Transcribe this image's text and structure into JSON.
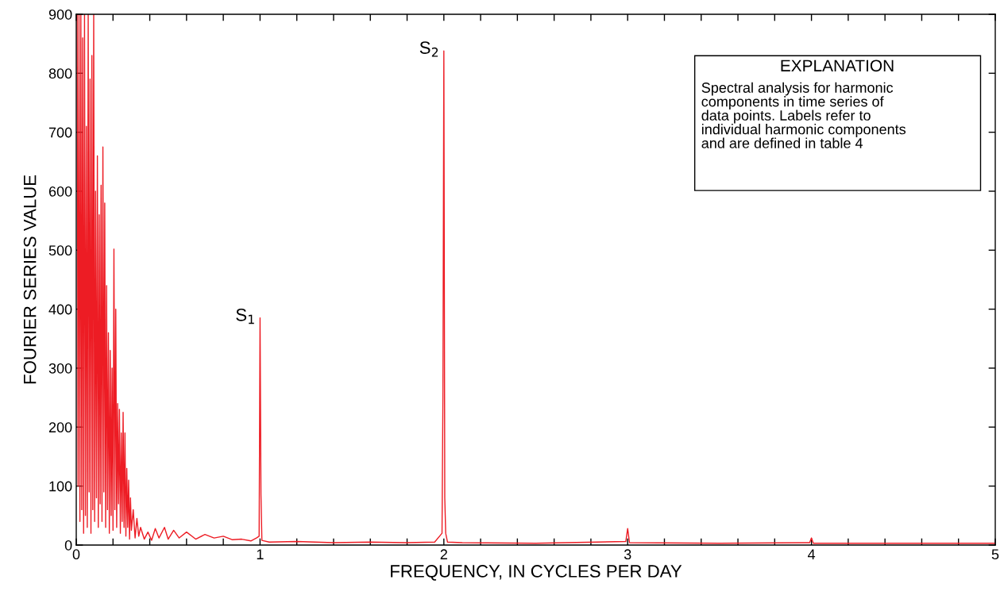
{
  "chart_data": {
    "type": "line",
    "xlabel": "FREQUENCY, IN CYCLES PER DAY",
    "ylabel": "FOURIER SERIES VALUE",
    "xlim": [
      0,
      5
    ],
    "ylim": [
      0,
      900
    ],
    "xticks": [
      0,
      {
        "value": 0.2,
        "label": null
      },
      {
        "value": 0.4,
        "label": null
      },
      {
        "value": 0.6,
        "label": null
      },
      {
        "value": 0.8,
        "label": null
      },
      1,
      {
        "value": 1.2,
        "label": null
      },
      {
        "value": 1.4,
        "label": null
      },
      {
        "value": 1.6,
        "label": null
      },
      {
        "value": 1.8,
        "label": null
      },
      2,
      {
        "value": 2.2,
        "label": null
      },
      {
        "value": 2.4,
        "label": null
      },
      {
        "value": 2.6,
        "label": null
      },
      {
        "value": 2.8,
        "label": null
      },
      3,
      {
        "value": 3.2,
        "label": null
      },
      {
        "value": 3.4,
        "label": null
      },
      {
        "value": 3.6,
        "label": null
      },
      {
        "value": 3.8,
        "label": null
      },
      4,
      {
        "value": 4.2,
        "label": null
      },
      {
        "value": 4.4,
        "label": null
      },
      {
        "value": 4.6,
        "label": null
      },
      {
        "value": 4.8,
        "label": null
      },
      5
    ],
    "yticks": [
      0,
      100,
      200,
      300,
      400,
      500,
      600,
      700,
      800,
      900
    ],
    "grid": false,
    "legend": false,
    "marker": "none",
    "line_style": "solid",
    "annotations": [
      {
        "text": "S$_{1}$",
        "x": 1.0,
        "y": 385
      },
      {
        "text": "S$_{2}$",
        "x": 2.0,
        "y": 838
      },
      "EXPLANATION",
      "Spectral analysis for harmonic\ncomponents in time series of\ndata points. Labels refer to\nindividual harmonic components\nand are defined in table 4"
    ],
    "series": [
      {
        "color": "#ed1c24",
        "x": [
          0.005,
          0.01,
          0.015,
          0.02,
          0.025,
          0.03,
          0.035,
          0.04,
          0.045,
          0.05,
          0.055,
          0.06,
          0.065,
          0.07,
          0.075,
          0.08,
          0.085,
          0.09,
          0.095,
          0.1,
          0.105,
          0.11,
          0.115,
          0.12,
          0.125,
          0.13,
          0.135,
          0.14,
          0.145,
          0.15,
          0.155,
          0.16,
          0.165,
          0.17,
          0.175,
          0.18,
          0.185,
          0.19,
          0.195,
          0.2,
          0.205,
          0.21,
          0.215,
          0.22,
          0.225,
          0.23,
          0.235,
          0.24,
          0.245,
          0.25,
          0.255,
          0.26,
          0.265,
          0.27,
          0.275,
          0.28,
          0.285,
          0.29,
          0.295,
          0.3,
          0.31,
          0.32,
          0.33,
          0.34,
          0.35,
          0.37,
          0.39,
          0.41,
          0.43,
          0.45,
          0.48,
          0.5,
          0.53,
          0.56,
          0.6,
          0.65,
          0.7,
          0.75,
          0.8,
          0.85,
          0.9,
          0.95,
          0.98,
          0.995,
          1.0,
          1.005,
          1.01,
          1.05,
          1.2,
          1.4,
          1.6,
          1.8,
          1.95,
          1.99,
          1.995,
          2.0,
          2.005,
          2.01,
          2.02,
          2.1,
          2.5,
          2.99,
          3.0,
          3.01,
          3.5,
          3.99,
          4.0,
          4.01,
          4.5,
          5.0
        ],
        "values": [
          900,
          100,
          900,
          40,
          900,
          60,
          860,
          20,
          900,
          50,
          710,
          30,
          900,
          90,
          790,
          20,
          830,
          60,
          900,
          40,
          600,
          80,
          660,
          30,
          560,
          70,
          610,
          40,
          675,
          90,
          580,
          30,
          440,
          60,
          360,
          20,
          330,
          50,
          300,
          25,
          502,
          60,
          400,
          30,
          240,
          70,
          230,
          20,
          190,
          40,
          225,
          30,
          190,
          15,
          130,
          30,
          110,
          10,
          80,
          25,
          60,
          12,
          45,
          15,
          30,
          10,
          22,
          8,
          28,
          12,
          30,
          10,
          25,
          12,
          22,
          10,
          18,
          12,
          15,
          9,
          10,
          7,
          12,
          15,
          385,
          85,
          8,
          5,
          6,
          4,
          5,
          4,
          5,
          20,
          250,
          838,
          80,
          20,
          5,
          4,
          3,
          6,
          28,
          4,
          3,
          4,
          12,
          3,
          3,
          3
        ]
      }
    ]
  }
}
